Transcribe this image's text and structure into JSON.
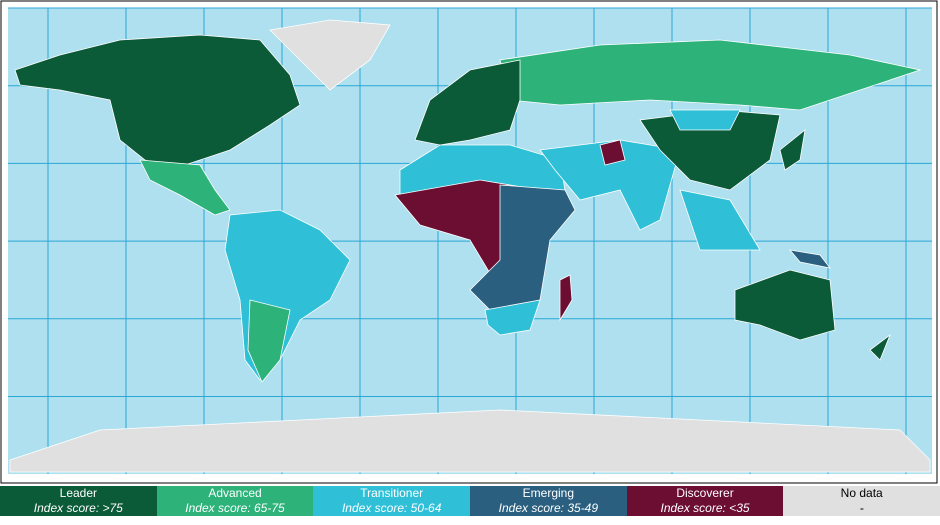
{
  "legend": {
    "items": [
      {
        "name": "Leader",
        "range": "Index score: >75",
        "color": "#0b5a38"
      },
      {
        "name": "Advanced",
        "range": "Index score: 65-75",
        "color": "#2db37a"
      },
      {
        "name": "Transitioner",
        "range": "Index score: 50-64",
        "color": "#2fc0d8"
      },
      {
        "name": "Emerging",
        "range": "Index score: 35-49",
        "color": "#2a5f80"
      },
      {
        "name": "Discoverer",
        "range": "Index score: <35",
        "color": "#6b0e32"
      },
      {
        "name": "No data",
        "range": "-",
        "color": "#e0e0e0"
      }
    ]
  }
}
